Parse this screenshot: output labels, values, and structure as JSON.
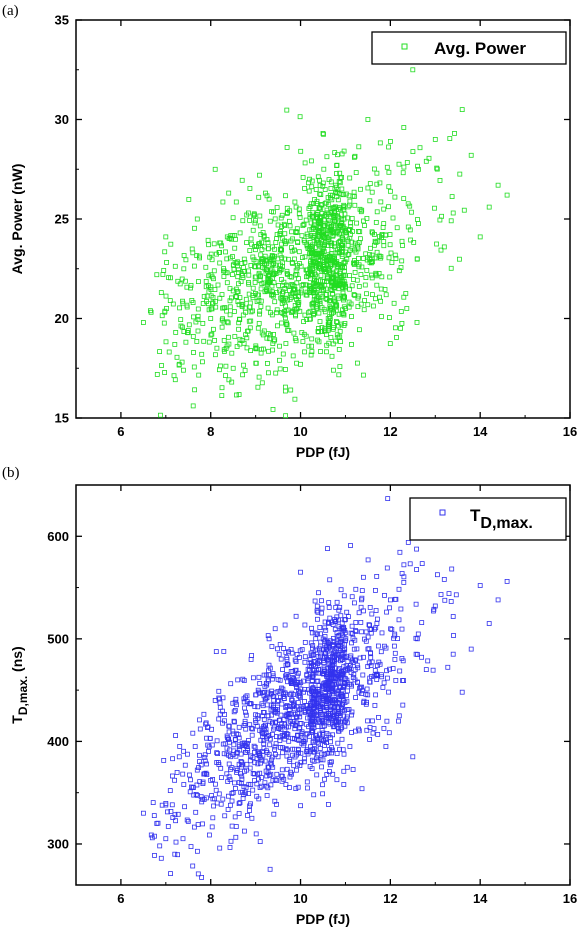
{
  "panels": {
    "a": {
      "tag": "(a)"
    },
    "b": {
      "tag": "(b)"
    }
  },
  "chart_data": [
    {
      "type": "scatter",
      "xlabel": "PDP (fJ)",
      "ylabel": "Avg. Power (nW)",
      "xlim": [
        5,
        16
      ],
      "ylim": [
        15,
        35
      ],
      "xticks": [
        6,
        8,
        10,
        12,
        14,
        16
      ],
      "yticks": [
        15,
        20,
        25,
        30,
        35
      ],
      "legend": "top-right",
      "series": [
        {
          "name": "Avg. Power",
          "color": "#22dd22",
          "marker": "open-square",
          "points": [
            [
              6.5,
              19.8
            ],
            [
              6.8,
              22.2
            ],
            [
              6.9,
              21.3
            ],
            [
              7.0,
              24.1
            ],
            [
              7.1,
              20.9
            ],
            [
              7.2,
              18.7
            ],
            [
              7.3,
              17.7
            ],
            [
              7.4,
              22.5
            ],
            [
              7.5,
              19.4
            ],
            [
              7.6,
              23.3
            ],
            [
              7.7,
              25.0
            ],
            [
              7.8,
              18.2
            ],
            [
              7.9,
              21.6
            ],
            [
              8.0,
              20.0
            ],
            [
              8.1,
              27.5
            ],
            [
              8.2,
              23.8
            ],
            [
              8.3,
              18.9
            ],
            [
              8.4,
              26.3
            ],
            [
              8.5,
              17.5
            ],
            [
              8.6,
              22.1
            ],
            [
              8.7,
              20.6
            ],
            [
              8.8,
              25.2
            ],
            [
              8.9,
              24.0
            ],
            [
              9.0,
              18.5
            ],
            [
              9.1,
              21.9
            ],
            [
              9.2,
              23.6
            ],
            [
              9.3,
              26.0
            ],
            [
              9.4,
              19.2
            ],
            [
              9.5,
              24.7
            ],
            [
              9.6,
              22.8
            ],
            [
              9.7,
              28.6
            ],
            [
              9.8,
              20.3
            ],
            [
              9.9,
              25.6
            ],
            [
              10.0,
              17.7
            ],
            [
              10.1,
              23.1
            ],
            [
              10.2,
              27.0
            ],
            [
              10.3,
              21.4
            ],
            [
              10.4,
              24.4
            ],
            [
              10.5,
              29.3
            ],
            [
              10.6,
              22.0
            ],
            [
              10.7,
              18.1
            ],
            [
              10.8,
              26.6
            ],
            [
              10.9,
              23.7
            ],
            [
              11.0,
              20.5
            ],
            [
              11.1,
              25.9
            ],
            [
              11.2,
              28.1
            ],
            [
              11.3,
              22.6
            ],
            [
              11.4,
              24.9
            ],
            [
              11.5,
              30.0
            ],
            [
              11.6,
              21.2
            ],
            [
              11.7,
              27.3
            ],
            [
              11.8,
              20.1
            ],
            [
              11.9,
              24.2
            ],
            [
              12.0,
              28.9
            ],
            [
              12.1,
              26.1
            ],
            [
              12.2,
              22.4
            ],
            [
              12.3,
              29.6
            ],
            [
              12.4,
              24.6
            ],
            [
              12.5,
              32.5
            ],
            [
              12.6,
              23.0
            ],
            [
              12.8,
              27.9
            ],
            [
              13.0,
              29.0
            ],
            [
              13.2,
              23.6
            ],
            [
              13.4,
              25.3
            ],
            [
              13.6,
              30.5
            ],
            [
              13.8,
              28.2
            ],
            [
              14.0,
              24.1
            ],
            [
              14.2,
              25.6
            ],
            [
              14.4,
              26.7
            ],
            [
              14.6,
              26.2
            ]
          ]
        }
      ]
    },
    {
      "type": "scatter",
      "xlabel": "PDP (fJ)",
      "ylabel": "T_D,max.  (ns)",
      "xlim": [
        5,
        16
      ],
      "ylim": [
        260,
        650
      ],
      "xticks": [
        6,
        8,
        10,
        12,
        14,
        16
      ],
      "yticks": [
        300,
        400,
        500,
        600
      ],
      "legend": "top-right",
      "series": [
        {
          "name": "T_D,max.",
          "color": "#3333ee",
          "marker": "open-square",
          "points": [
            [
              6.5,
              330
            ],
            [
              6.7,
              306
            ],
            [
              6.8,
              320
            ],
            [
              6.9,
              286
            ],
            [
              7.0,
              338
            ],
            [
              7.1,
              352
            ],
            [
              7.2,
              290
            ],
            [
              7.3,
              385
            ],
            [
              7.4,
              358
            ],
            [
              7.5,
              322
            ],
            [
              7.6,
              408
            ],
            [
              7.7,
              372
            ],
            [
              7.8,
              341
            ],
            [
              7.9,
              418
            ],
            [
              8.0,
              362
            ],
            [
              8.1,
              440
            ],
            [
              8.2,
              296
            ],
            [
              8.3,
              388
            ],
            [
              8.4,
              415
            ],
            [
              8.5,
              350
            ],
            [
              8.6,
              460
            ],
            [
              8.7,
              398
            ],
            [
              8.8,
              372
            ],
            [
              8.9,
              480
            ],
            [
              9.0,
              426
            ],
            [
              9.1,
              355
            ],
            [
              9.2,
              448
            ],
            [
              9.3,
              500
            ],
            [
              9.4,
              412
            ],
            [
              9.5,
              385
            ],
            [
              9.6,
              470
            ],
            [
              9.7,
              435
            ],
            [
              9.8,
              368
            ],
            [
              9.9,
              522
            ],
            [
              10.0,
              565
            ],
            [
              10.1,
              430
            ],
            [
              10.2,
              405
            ],
            [
              10.3,
              478
            ],
            [
              10.4,
              545
            ],
            [
              10.5,
              382
            ],
            [
              10.6,
              588
            ],
            [
              10.7,
              455
            ],
            [
              10.8,
              420
            ],
            [
              10.9,
              510
            ],
            [
              11.0,
              470
            ],
            [
              11.1,
              395
            ],
            [
              11.2,
              535
            ],
            [
              11.3,
              448
            ],
            [
              11.4,
              560
            ],
            [
              11.5,
              490
            ],
            [
              11.6,
              420
            ],
            [
              11.7,
              515
            ],
            [
              11.8,
              465
            ],
            [
              11.9,
              395
            ],
            [
              12.0,
              538
            ],
            [
              12.1,
              480
            ],
            [
              12.2,
              425
            ],
            [
              12.3,
              555
            ],
            [
              12.4,
              594
            ],
            [
              12.5,
              385
            ],
            [
              12.6,
              500
            ],
            [
              12.8,
              470
            ],
            [
              13.0,
              532
            ],
            [
              13.2,
              558
            ],
            [
              13.4,
              485
            ],
            [
              13.6,
              448
            ],
            [
              13.8,
              490
            ],
            [
              14.0,
              552
            ],
            [
              14.2,
              515
            ],
            [
              14.4,
              538
            ],
            [
              14.6,
              556
            ]
          ]
        }
      ]
    }
  ]
}
